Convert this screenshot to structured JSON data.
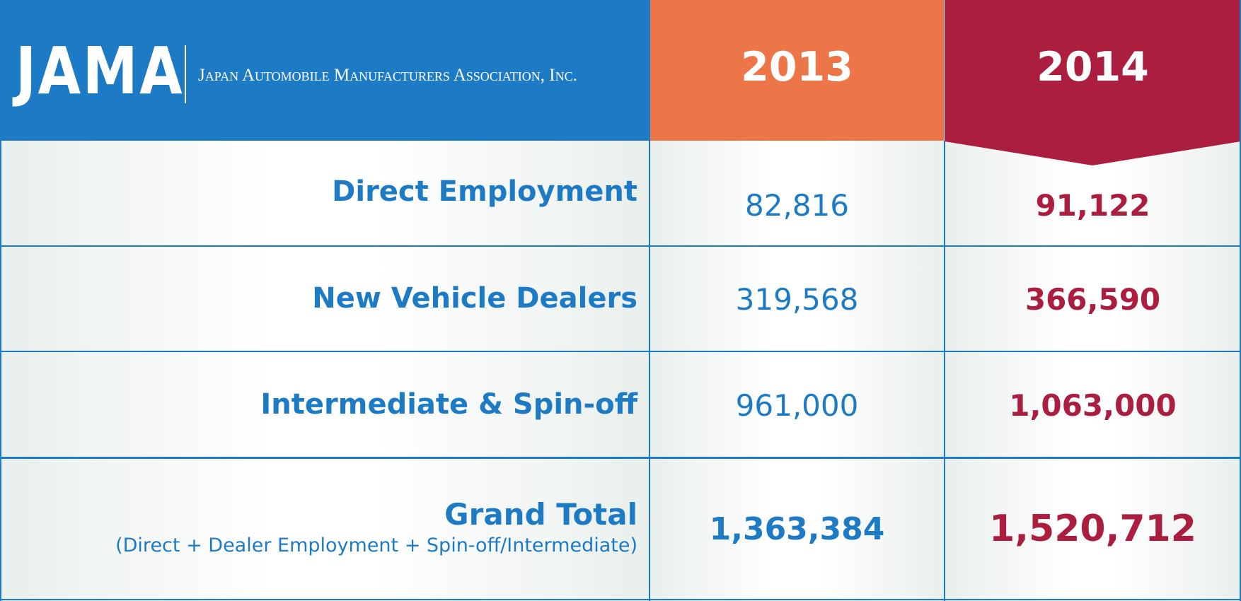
{
  "header": {
    "logo": "JAMA",
    "organization": "Japan Automobile Manufacturers Association, Inc.",
    "years": [
      "2013",
      "2014"
    ]
  },
  "rows": [
    {
      "label": "Direct Employment",
      "v2013": "82,816",
      "v2014": "91,122"
    },
    {
      "label": "New Vehicle Dealers",
      "v2013": "319,568",
      "v2014": "366,590"
    },
    {
      "label": "Intermediate & Spin-off",
      "v2013": "961,000",
      "v2014": "1,063,000"
    }
  ],
  "total": {
    "label": "Grand Total",
    "sublabel": "(Direct + Dealer Employment + Spin-off/Intermediate)",
    "v2013": "1,363,384",
    "v2014": "1,520,712"
  },
  "colors": {
    "blue": "#1d7ac5",
    "orange": "#ec7647",
    "crimson": "#ac1e3f",
    "cell_edge": "#e9efec"
  },
  "chart_data": {
    "type": "table",
    "columns": [
      "2013",
      "2014"
    ],
    "rows": [
      {
        "name": "Direct Employment",
        "values": [
          82816,
          91122
        ]
      },
      {
        "name": "New Vehicle Dealers",
        "values": [
          319568,
          366590
        ]
      },
      {
        "name": "Intermediate & Spin-off",
        "values": [
          961000,
          1063000
        ]
      },
      {
        "name": "Grand Total",
        "values": [
          1363384,
          1520712
        ]
      }
    ]
  }
}
